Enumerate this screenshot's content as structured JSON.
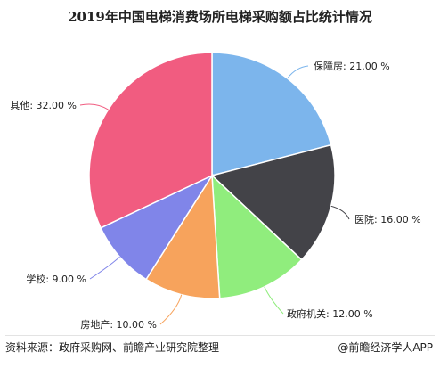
{
  "chart_data": {
    "type": "pie",
    "title": "2019年中国电梯消费场所电梯采购额占比统计情况",
    "slices": [
      {
        "label": "保障房",
        "value": 21.0,
        "display": "保障房: 21.00 %",
        "color": "#7cb5ec"
      },
      {
        "label": "医院",
        "value": 16.0,
        "display": "医院: 16.00 %",
        "color": "#434348"
      },
      {
        "label": "政府机关",
        "value": 12.0,
        "display": "政府机关: 12.00 %",
        "color": "#90ed7d"
      },
      {
        "label": "房地产",
        "value": 10.0,
        "display": "房地产: 10.00 %",
        "color": "#f7a35c"
      },
      {
        "label": "学校",
        "value": 9.0,
        "display": "学校: 9.00 %",
        "color": "#8085e9"
      },
      {
        "label": "其他",
        "value": 32.0,
        "display": "其他: 32.00 %",
        "color": "#f15c80"
      }
    ],
    "start_angle": "12 o'clock, clockwise"
  },
  "footer": {
    "source": "资料来源：政府采购网、前瞻产业研究院整理",
    "brand": "@前瞻经济学人APP"
  }
}
